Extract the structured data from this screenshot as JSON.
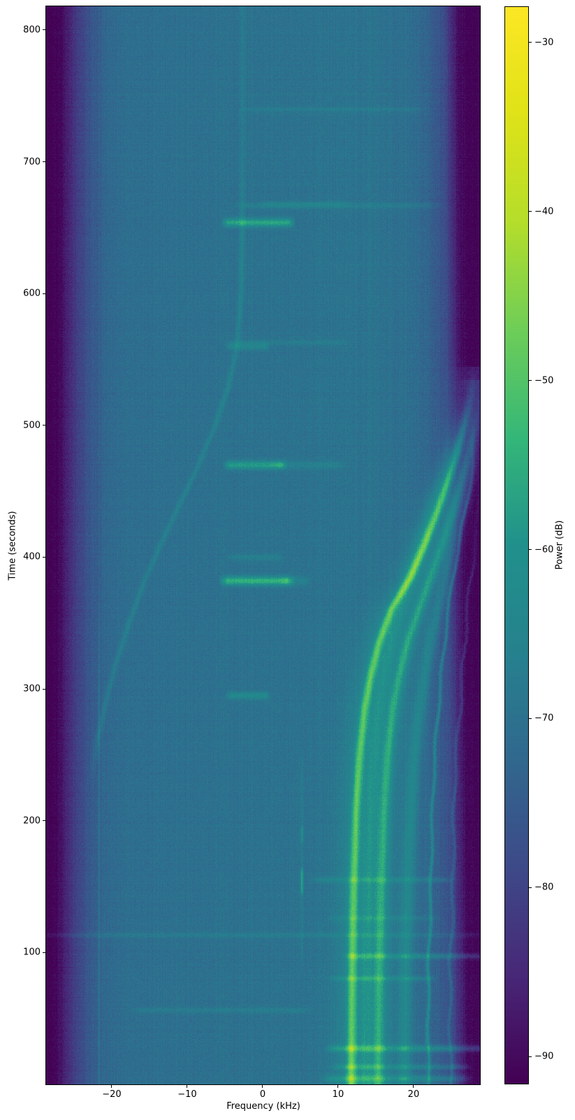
{
  "chart_data": {
    "type": "heatmap",
    "subtype": "spectrogram",
    "title": "",
    "xlabel": "Frequency (kHz)",
    "ylabel": "Time (seconds)",
    "x_axis": {
      "range_khz": [
        -28.7,
        28.8
      ],
      "ticks": [
        {
          "value": -20,
          "label": "−20"
        },
        {
          "value": -10,
          "label": "−10"
        },
        {
          "value": 0,
          "label": "0"
        },
        {
          "value": 10,
          "label": "10"
        },
        {
          "value": 20,
          "label": "20"
        }
      ]
    },
    "y_axis": {
      "range_s": [
        0,
        818
      ],
      "ticks": [
        {
          "value": 100,
          "label": "100"
        },
        {
          "value": 200,
          "label": "200"
        },
        {
          "value": 300,
          "label": "300"
        },
        {
          "value": 400,
          "label": "400"
        },
        {
          "value": 500,
          "label": "500"
        },
        {
          "value": 600,
          "label": "600"
        },
        {
          "value": 700,
          "label": "700"
        },
        {
          "value": 800,
          "label": "800"
        }
      ]
    },
    "colorbar": {
      "label": "Power (dB)",
      "vmin_db": -91.6,
      "vmax_db": -27.9,
      "ticks": [
        {
          "value": -30,
          "label": "−30"
        },
        {
          "value": -40,
          "label": "−40"
        },
        {
          "value": -50,
          "label": "−50"
        },
        {
          "value": -60,
          "label": "−60"
        },
        {
          "value": -70,
          "label": "−70"
        },
        {
          "value": -80,
          "label": "−80"
        },
        {
          "value": -90,
          "label": "−90"
        }
      ],
      "colormap": "viridis"
    },
    "colormap_stops": [
      [
        0.0,
        68,
        1,
        84
      ],
      [
        0.1,
        72,
        40,
        120
      ],
      [
        0.2,
        62,
        74,
        137
      ],
      [
        0.3,
        49,
        104,
        142
      ],
      [
        0.4,
        38,
        130,
        142
      ],
      [
        0.5,
        33,
        145,
        140
      ],
      [
        0.6,
        53,
        183,
        121
      ],
      [
        0.7,
        110,
        206,
        88
      ],
      [
        0.8,
        181,
        222,
        43
      ],
      [
        0.9,
        223,
        227,
        24
      ],
      [
        1.0,
        253,
        231,
        37
      ]
    ],
    "background": {
      "noise_db": 2.9,
      "row_noise_db": 0.5,
      "col_noise_db": 0.9,
      "right_edge_drift_khz": 1.2,
      "left_edge_drift_khz": 0.6,
      "profile_db_vs_khz": [
        [
          -28.7,
          -91.5
        ],
        [
          -27.5,
          -91.0
        ],
        [
          -26.5,
          -87.0
        ],
        [
          -25.0,
          -81.0
        ],
        [
          -23.0,
          -75.5
        ],
        [
          -21.0,
          -72.5
        ],
        [
          -18.0,
          -71.0
        ],
        [
          -12.0,
          -70.5
        ],
        [
          -6.0,
          -70.2
        ],
        [
          0.0,
          -70.0
        ],
        [
          6.0,
          -69.8
        ],
        [
          10.0,
          -69.6
        ],
        [
          13.0,
          -69.7
        ],
        [
          16.0,
          -70.0
        ],
        [
          19.0,
          -70.8
        ],
        [
          21.5,
          -72.0
        ],
        [
          23.5,
          -74.5
        ],
        [
          25.2,
          -78.0
        ],
        [
          26.3,
          -85.0
        ],
        [
          27.2,
          -90.0
        ],
        [
          28.3,
          -91.0
        ],
        [
          28.8,
          -91.5
        ]
      ]
    },
    "tracks": [
      {
        "name": "main-doppler-tone",
        "sigma_khz": 0.42,
        "halo": [
          1.7,
          4.5
        ],
        "points": [
          [
            0,
            11.75
          ],
          [
            80,
            11.85
          ],
          [
            150,
            12.05
          ],
          [
            210,
            12.4
          ],
          [
            250,
            12.85
          ],
          [
            285,
            13.5
          ],
          [
            310,
            14.3
          ],
          [
            335,
            15.4
          ],
          [
            360,
            17.0
          ],
          [
            385,
            19.6
          ],
          [
            410,
            21.5
          ],
          [
            435,
            23.2
          ],
          [
            460,
            24.7
          ],
          [
            480,
            25.8
          ],
          [
            500,
            26.7
          ],
          [
            520,
            27.5
          ],
          [
            545,
            28.2
          ]
        ],
        "amp_db": [
          [
            0,
            17.5
          ],
          [
            50,
            16
          ],
          [
            480,
            16
          ],
          [
            545,
            0
          ]
        ]
      },
      {
        "name": "second-doppler-tone",
        "sigma_khz": 0.5,
        "halo": [
          1.8,
          3.5
        ],
        "points": [
          [
            0,
            15.35
          ],
          [
            80,
            15.5
          ],
          [
            150,
            15.75
          ],
          [
            210,
            16.15
          ],
          [
            250,
            16.6
          ],
          [
            285,
            17.3
          ],
          [
            310,
            18.1
          ],
          [
            335,
            19.2
          ],
          [
            360,
            20.7
          ],
          [
            385,
            22.3
          ],
          [
            410,
            23.8
          ],
          [
            435,
            25.2
          ],
          [
            460,
            26.4
          ],
          [
            480,
            27.3
          ],
          [
            500,
            28.1
          ],
          [
            520,
            28.8
          ]
        ],
        "amp_db": [
          [
            0,
            11
          ],
          [
            465,
            11
          ],
          [
            535,
            0
          ]
        ]
      },
      {
        "name": "middle-faint-band",
        "sigma_khz": 0.75,
        "points": [
          [
            0,
            13.6
          ],
          [
            100,
            13.8
          ],
          [
            180,
            14.15
          ],
          [
            240,
            14.7
          ],
          [
            280,
            15.3
          ],
          [
            315,
            16.2
          ],
          [
            345,
            17.4
          ],
          [
            375,
            18.9
          ],
          [
            405,
            20.7
          ],
          [
            435,
            22.4
          ],
          [
            460,
            23.9
          ],
          [
            485,
            25.2
          ],
          [
            505,
            26.2
          ]
        ],
        "amp_db": [
          [
            0,
            5.5
          ],
          [
            455,
            5.5
          ],
          [
            520,
            0
          ]
        ]
      },
      {
        "name": "upper-faint-band",
        "sigma_khz": 0.6,
        "points": [
          [
            0,
            18.8
          ],
          [
            100,
            19.0
          ],
          [
            180,
            19.45
          ],
          [
            240,
            20.0
          ],
          [
            280,
            20.7
          ],
          [
            315,
            21.6
          ],
          [
            345,
            22.6
          ],
          [
            375,
            23.8
          ],
          [
            405,
            25.0
          ],
          [
            430,
            26.0
          ],
          [
            455,
            27.0
          ],
          [
            475,
            27.8
          ]
        ],
        "amp_db": [
          [
            0,
            6.5
          ],
          [
            445,
            6.5
          ],
          [
            515,
            0
          ]
        ]
      },
      {
        "name": "thin-wiggly-line",
        "sigma_khz": 0.16,
        "wiggle_khz": 0.12,
        "points": [
          [
            0,
            21.9
          ],
          [
            90,
            22.05
          ],
          [
            170,
            22.3
          ],
          [
            230,
            22.7
          ],
          [
            275,
            23.1
          ],
          [
            315,
            23.7
          ],
          [
            350,
            24.4
          ],
          [
            385,
            25.3
          ],
          [
            415,
            26.2
          ],
          [
            445,
            27.1
          ],
          [
            470,
            27.9
          ]
        ],
        "amp_db": [
          [
            0,
            9
          ],
          [
            440,
            9
          ],
          [
            505,
            0
          ]
        ]
      },
      {
        "name": "outer-thin-wiggly-line",
        "sigma_khz": 0.15,
        "wiggle_khz": 0.18,
        "points": [
          [
            0,
            24.8
          ],
          [
            90,
            24.95
          ],
          [
            170,
            25.2
          ],
          [
            230,
            25.55
          ],
          [
            275,
            25.95
          ],
          [
            315,
            26.45
          ],
          [
            350,
            27.0
          ],
          [
            385,
            27.7
          ],
          [
            420,
            28.4
          ]
        ],
        "amp_db": [
          [
            0,
            5.5
          ],
          [
            380,
            5.5
          ],
          [
            465,
            0
          ]
        ]
      },
      {
        "name": "left-mirror-track",
        "sigma_khz": 0.28,
        "points": [
          [
            230,
            -22.8
          ],
          [
            260,
            -21.9
          ],
          [
            290,
            -20.8
          ],
          [
            320,
            -19.4
          ],
          [
            350,
            -17.7
          ],
          [
            380,
            -15.8
          ],
          [
            410,
            -13.5
          ],
          [
            440,
            -11.0
          ],
          [
            470,
            -8.5
          ],
          [
            500,
            -6.3
          ],
          [
            530,
            -4.5
          ],
          [
            560,
            -3.4
          ],
          [
            600,
            -2.85
          ],
          [
            650,
            -2.7
          ],
          [
            818,
            -2.6
          ]
        ],
        "amp_db": [
          [
            225,
            0
          ],
          [
            262,
            4
          ],
          [
            640,
            4
          ],
          [
            700,
            2.2
          ],
          [
            818,
            2.2
          ]
        ]
      },
      {
        "name": "faint-vertical-line-left",
        "sigma_khz": 0.12,
        "points": [
          [
            0,
            -21.7
          ],
          [
            818,
            -21.7
          ]
        ],
        "amp_db": [
          [
            0,
            3
          ],
          [
            300,
            3
          ],
          [
            380,
            0
          ]
        ]
      },
      {
        "name": "intermittent-vertical-line",
        "sigma_khz": 0.13,
        "points": [
          [
            0,
            5.2
          ],
          [
            818,
            5.2
          ]
        ],
        "amp_db": [
          [
            80,
            0
          ],
          [
            100,
            2.5
          ],
          [
            143,
            2.5
          ],
          [
            146,
            13
          ],
          [
            161,
            13
          ],
          [
            165,
            2.5
          ],
          [
            183,
            2.5
          ],
          [
            185,
            8
          ],
          [
            194,
            8
          ],
          [
            197,
            2.5
          ],
          [
            235,
            2.5
          ],
          [
            260,
            0
          ]
        ]
      }
    ],
    "transients": [
      {
        "t": 654,
        "st": 2.2,
        "f0": -4.6,
        "f1": 3.4,
        "edge": 1.0,
        "amp": 14
      },
      {
        "t": 668,
        "st": 1.8,
        "f0": 1.0,
        "f1": 10.0,
        "edge": 2.0,
        "amp": 2.8
      },
      {
        "t": 560,
        "st": 2.0,
        "f0": -4.3,
        "f1": 0.3,
        "edge": 0.8,
        "amp": 5
      },
      {
        "t": 563,
        "st": 1.5,
        "f0": -3.2,
        "f1": 10.0,
        "edge": 2.0,
        "amp": 2.5
      },
      {
        "t": 470,
        "st": 2.2,
        "f0": -4.4,
        "f1": 2.5,
        "edge": 0.9,
        "amp": 12
      },
      {
        "t": 470,
        "st": 2.2,
        "f0": 2.5,
        "f1": 9.5,
        "edge": 2.0,
        "amp": 3.5
      },
      {
        "t": 400,
        "st": 1.8,
        "f0": -4.0,
        "f1": 2.0,
        "edge": 1.0,
        "amp": 3.5
      },
      {
        "t": 382,
        "st": 2.4,
        "f0": -4.7,
        "f1": 3.2,
        "edge": 1.2,
        "amp": 16
      },
      {
        "t": 382,
        "st": 2.4,
        "f0": 3.2,
        "f1": 5.6,
        "edge": 1.0,
        "amp": 4
      },
      {
        "t": 295,
        "st": 2.0,
        "f0": -4.2,
        "f1": 0.4,
        "edge": 0.8,
        "amp": 7
      },
      {
        "t": 740,
        "st": 1.4,
        "f0": -1.0,
        "f1": 20.0,
        "edge": 2.5,
        "amp": 2.4
      },
      {
        "t": 667,
        "st": 1.5,
        "f0": -2.0,
        "f1": 22.0,
        "edge": 2.5,
        "amp": 3
      },
      {
        "t": 155,
        "st": 1.5,
        "f0": 8.0,
        "f1": 24.0,
        "edge": 2.0,
        "amp": 4
      },
      {
        "t": 126,
        "st": 1.4,
        "f0": 10.0,
        "f1": 22.0,
        "edge": 2.0,
        "amp": 2.8
      },
      {
        "t": 113,
        "st": 1.5,
        "f0": -28.7,
        "f1": 28.8,
        "edge": 3.0,
        "amp": 3
      },
      {
        "t": 97,
        "st": 1.6,
        "f0": 11.8,
        "f1": 28.7,
        "edge": 1.5,
        "amp": 7
      },
      {
        "t": 80,
        "st": 1.4,
        "f0": 10.0,
        "f1": 22.0,
        "edge": 1.5,
        "amp": 5
      },
      {
        "t": 56,
        "st": 1.5,
        "f0": -16.0,
        "f1": 5.0,
        "edge": 2.0,
        "amp": 3
      },
      {
        "t": 27,
        "st": 1.8,
        "f0": 9.5,
        "f1": 28.7,
        "edge": 1.5,
        "amp": 9
      },
      {
        "t": 13,
        "st": 1.4,
        "f0": 10.0,
        "f1": 26.5,
        "edge": 1.5,
        "amp": 6
      },
      {
        "t": 4,
        "st": 2.0,
        "f0": 9.0,
        "f1": 26.5,
        "edge": 1.5,
        "amp": 7
      }
    ]
  }
}
